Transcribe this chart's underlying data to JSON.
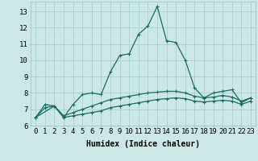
{
  "xlabel": "Humidex (Indice chaleur)",
  "bg_color": "#cce8e6",
  "grid_color": "#aad0ce",
  "line_color": "#1a6b60",
  "xlim": [
    -0.5,
    23.5
  ],
  "ylim": [
    6.0,
    13.6
  ],
  "xticks": [
    0,
    1,
    2,
    3,
    4,
    5,
    6,
    7,
    8,
    9,
    10,
    11,
    12,
    13,
    14,
    15,
    16,
    17,
    18,
    19,
    20,
    21,
    22,
    23
  ],
  "yticks": [
    6,
    7,
    8,
    9,
    10,
    11,
    12,
    13
  ],
  "series1_x": [
    0,
    1,
    2,
    3,
    4,
    5,
    6,
    7,
    8,
    9,
    10,
    11,
    12,
    13,
    14,
    15,
    16,
    17,
    18,
    19,
    20,
    21,
    22,
    23
  ],
  "series1_y": [
    6.5,
    7.3,
    7.2,
    6.5,
    7.3,
    7.9,
    8.0,
    7.9,
    9.3,
    10.3,
    10.4,
    11.6,
    12.1,
    13.3,
    11.2,
    11.1,
    10.0,
    8.3,
    7.7,
    8.0,
    8.1,
    8.2,
    7.4,
    7.7
  ],
  "series2_x": [
    0,
    1,
    2,
    3,
    4,
    5,
    6,
    7,
    8,
    9,
    10,
    11,
    12,
    13,
    14,
    15,
    16,
    17,
    18,
    19,
    20,
    21,
    22,
    23
  ],
  "series2_y": [
    6.5,
    7.1,
    7.2,
    6.6,
    6.8,
    7.0,
    7.2,
    7.4,
    7.6,
    7.7,
    7.8,
    7.9,
    8.0,
    8.05,
    8.1,
    8.1,
    8.0,
    7.8,
    7.7,
    7.75,
    7.85,
    7.75,
    7.5,
    7.7
  ],
  "series3_x": [
    0,
    2,
    3,
    4,
    5,
    6,
    7,
    8,
    9,
    10,
    11,
    12,
    13,
    14,
    15,
    16,
    17,
    18,
    19,
    20,
    21,
    22,
    23
  ],
  "series3_y": [
    6.5,
    7.2,
    6.5,
    6.6,
    6.7,
    6.8,
    6.9,
    7.1,
    7.2,
    7.3,
    7.4,
    7.5,
    7.6,
    7.65,
    7.7,
    7.65,
    7.5,
    7.45,
    7.5,
    7.55,
    7.5,
    7.3,
    7.5
  ],
  "marker": "+",
  "markersize": 3,
  "linewidth": 0.9,
  "font_family": "monospace",
  "xlabel_fontsize": 7,
  "tick_fontsize": 6.5
}
